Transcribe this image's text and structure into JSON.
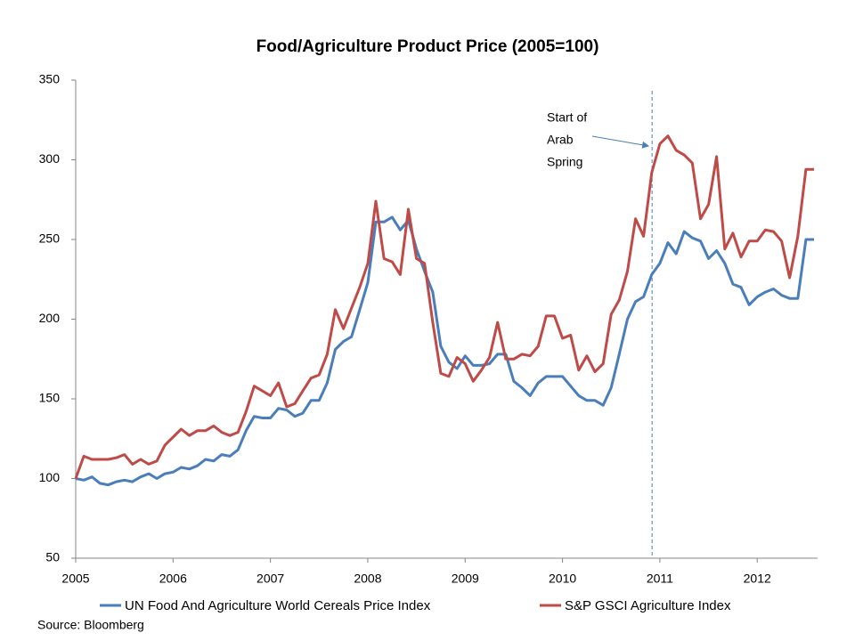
{
  "chart_data": {
    "type": "line",
    "title": "Food/Agriculture Product Price (2005=100)",
    "source": "Source: Bloomberg",
    "annotation": {
      "lines": [
        "Start of",
        "Arab",
        "Spring"
      ],
      "x": 2010.92
    },
    "x": [
      2005.0,
      2005.083,
      2005.167,
      2005.25,
      2005.333,
      2005.417,
      2005.5,
      2005.583,
      2005.667,
      2005.75,
      2005.833,
      2005.917,
      2006.0,
      2006.083,
      2006.167,
      2006.25,
      2006.333,
      2006.417,
      2006.5,
      2006.583,
      2006.667,
      2006.75,
      2006.833,
      2006.917,
      2007.0,
      2007.083,
      2007.167,
      2007.25,
      2007.333,
      2007.417,
      2007.5,
      2007.583,
      2007.667,
      2007.75,
      2007.833,
      2007.917,
      2008.0,
      2008.083,
      2008.167,
      2008.25,
      2008.333,
      2008.417,
      2008.5,
      2008.583,
      2008.667,
      2008.75,
      2008.833,
      2008.917,
      2009.0,
      2009.083,
      2009.167,
      2009.25,
      2009.333,
      2009.417,
      2009.5,
      2009.583,
      2009.667,
      2009.75,
      2009.833,
      2009.917,
      2010.0,
      2010.083,
      2010.167,
      2010.25,
      2010.333,
      2010.417,
      2010.5,
      2010.583,
      2010.667,
      2010.75,
      2010.833,
      2010.917,
      2011.0,
      2011.083,
      2011.167,
      2011.25,
      2011.333,
      2011.417,
      2011.5,
      2011.583,
      2011.667,
      2011.75,
      2011.833,
      2011.917,
      2012.0,
      2012.083,
      2012.167,
      2012.25,
      2012.333,
      2012.417,
      2012.5,
      2012.583
    ],
    "series": [
      {
        "name": "UN Food And Agriculture World Cereals Price Index",
        "color": "#4a7ebb",
        "values": [
          100,
          99,
          101,
          97,
          96,
          98,
          99,
          98,
          101,
          103,
          100,
          103,
          104,
          107,
          106,
          108,
          112,
          111,
          115,
          114,
          118,
          130,
          139,
          138,
          138,
          144,
          143,
          139,
          141,
          149,
          149,
          160,
          181,
          186,
          189,
          206,
          223,
          261,
          261,
          264,
          256,
          262,
          244,
          230,
          217,
          183,
          173,
          169,
          177,
          171,
          171,
          172,
          178,
          178,
          161,
          157,
          152,
          160,
          164,
          164,
          164,
          158,
          152,
          149,
          149,
          146,
          157,
          178,
          200,
          211,
          214,
          228,
          235,
          248,
          241,
          255,
          251,
          249,
          238,
          243,
          235,
          222,
          220,
          209,
          214,
          217,
          219,
          215,
          213,
          213,
          250,
          250
        ]
      },
      {
        "name": "S&P GSCI Agriculture Index",
        "color": "#be4b48",
        "values": [
          100,
          114,
          112,
          112,
          112,
          113,
          115,
          109,
          112,
          109,
          111,
          121,
          126,
          131,
          127,
          130,
          130,
          133,
          129,
          127,
          129,
          142,
          158,
          155,
          152,
          160,
          145,
          147,
          155,
          163,
          165,
          178,
          206,
          194,
          207,
          220,
          235,
          274,
          238,
          236,
          228,
          269,
          238,
          235,
          198,
          166,
          164,
          176,
          172,
          161,
          168,
          176,
          198,
          175,
          175,
          178,
          177,
          183,
          202,
          202,
          188,
          190,
          168,
          177,
          167,
          172,
          203,
          212,
          230,
          263,
          252,
          292,
          310,
          315,
          306,
          303,
          298,
          263,
          272,
          302,
          244,
          254,
          239,
          249,
          249,
          256,
          255,
          249,
          226,
          252,
          294,
          294
        ]
      }
    ],
    "xlim": [
      2005,
      2012.62
    ],
    "xticks": [
      2005,
      2006,
      2007,
      2008,
      2009,
      2010,
      2011,
      2012
    ],
    "ylim": [
      50,
      350
    ],
    "yticks": [
      50,
      100,
      150,
      200,
      250,
      300,
      350
    ],
    "grid": false,
    "legend": "bottom"
  }
}
